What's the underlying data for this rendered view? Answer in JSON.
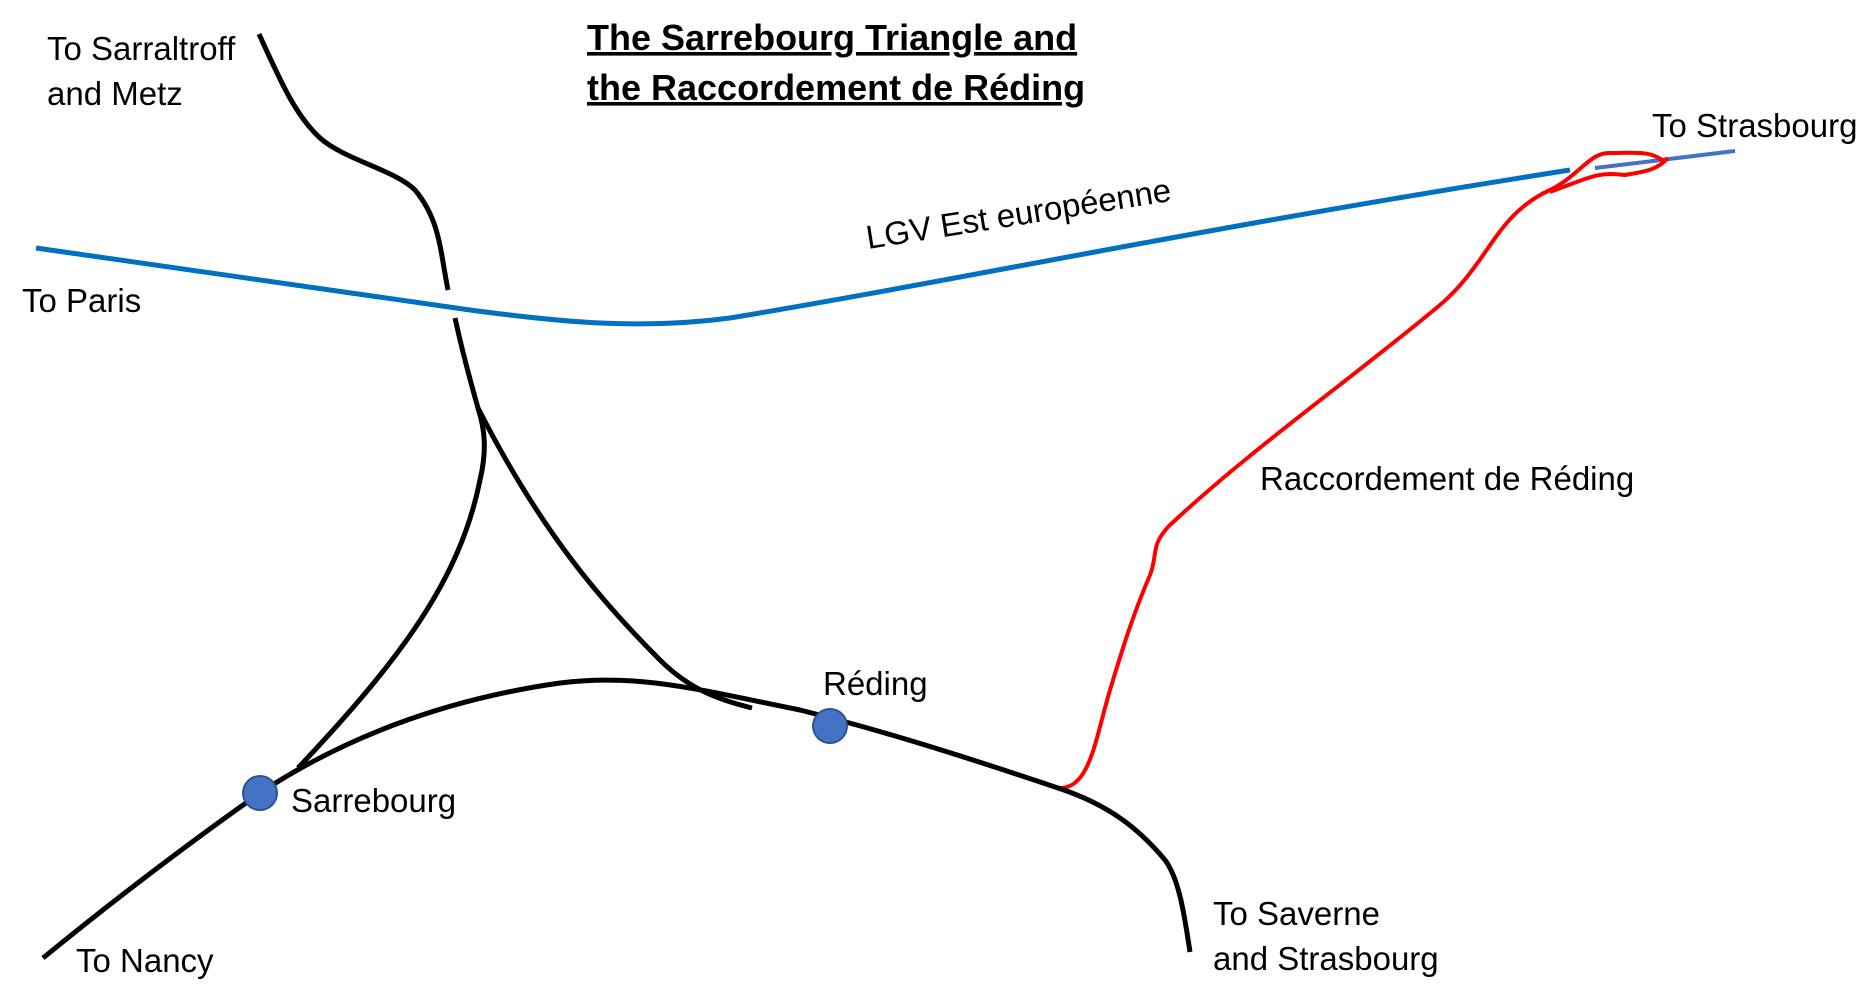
{
  "title": {
    "line1": "The Sarrebourg Triangle and",
    "line2": "the Raccordement de Réding"
  },
  "labels": {
    "sarraltroff_line1": "To Sarraltroff",
    "sarraltroff_line2": "and Metz",
    "paris": "To Paris",
    "lgv": "LGV Est européenne",
    "strasbourg": "To Strasbourg",
    "raccordement": "Raccordement de Réding",
    "reding": "Réding",
    "sarrebourg": "Sarrebourg",
    "nancy": "To Nancy",
    "saverne_line1": "To Saverne",
    "saverne_line2": "and Strasbourg"
  },
  "colors": {
    "lgv": "#0070C0",
    "lgv_stub": "#4472C4",
    "raccordement": "#FF0000",
    "conventional": "#000000",
    "station_fill": "#4472C4",
    "station_stroke": "#2F528F",
    "text": "#000000"
  }
}
